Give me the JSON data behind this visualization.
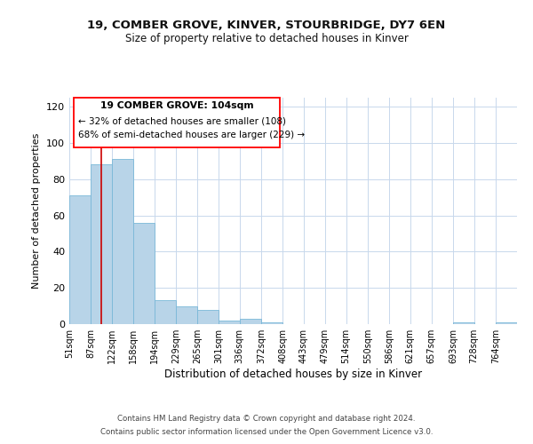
{
  "title1": "19, COMBER GROVE, KINVER, STOURBRIDGE, DY7 6EN",
  "title2": "Size of property relative to detached houses in Kinver",
  "xlabel": "Distribution of detached houses by size in Kinver",
  "ylabel": "Number of detached properties",
  "bin_edges": [
    51,
    87,
    122,
    158,
    194,
    229,
    265,
    301,
    336,
    372,
    408,
    443,
    479,
    514,
    550,
    586,
    621,
    657,
    693,
    728,
    764
  ],
  "bar_heights": [
    71,
    88,
    91,
    56,
    13,
    10,
    8,
    2,
    3,
    1,
    0,
    0,
    0,
    0,
    0,
    0,
    0,
    0,
    1,
    0,
    1
  ],
  "bar_color": "#b8d4e8",
  "bar_edge_color": "#7ab8d8",
  "red_line_x": 104,
  "red_line_color": "#cc0000",
  "ylim": [
    0,
    125
  ],
  "yticks": [
    0,
    20,
    40,
    60,
    80,
    100,
    120
  ],
  "annotation_title": "19 COMBER GROVE: 104sqm",
  "annotation_line1": "← 32% of detached houses are smaller (108)",
  "annotation_line2": "68% of semi-detached houses are larger (229) →",
  "footer1": "Contains HM Land Registry data © Crown copyright and database right 2024.",
  "footer2": "Contains public sector information licensed under the Open Government Licence v3.0.",
  "background_color": "#ffffff",
  "grid_color": "#c8d8ec"
}
